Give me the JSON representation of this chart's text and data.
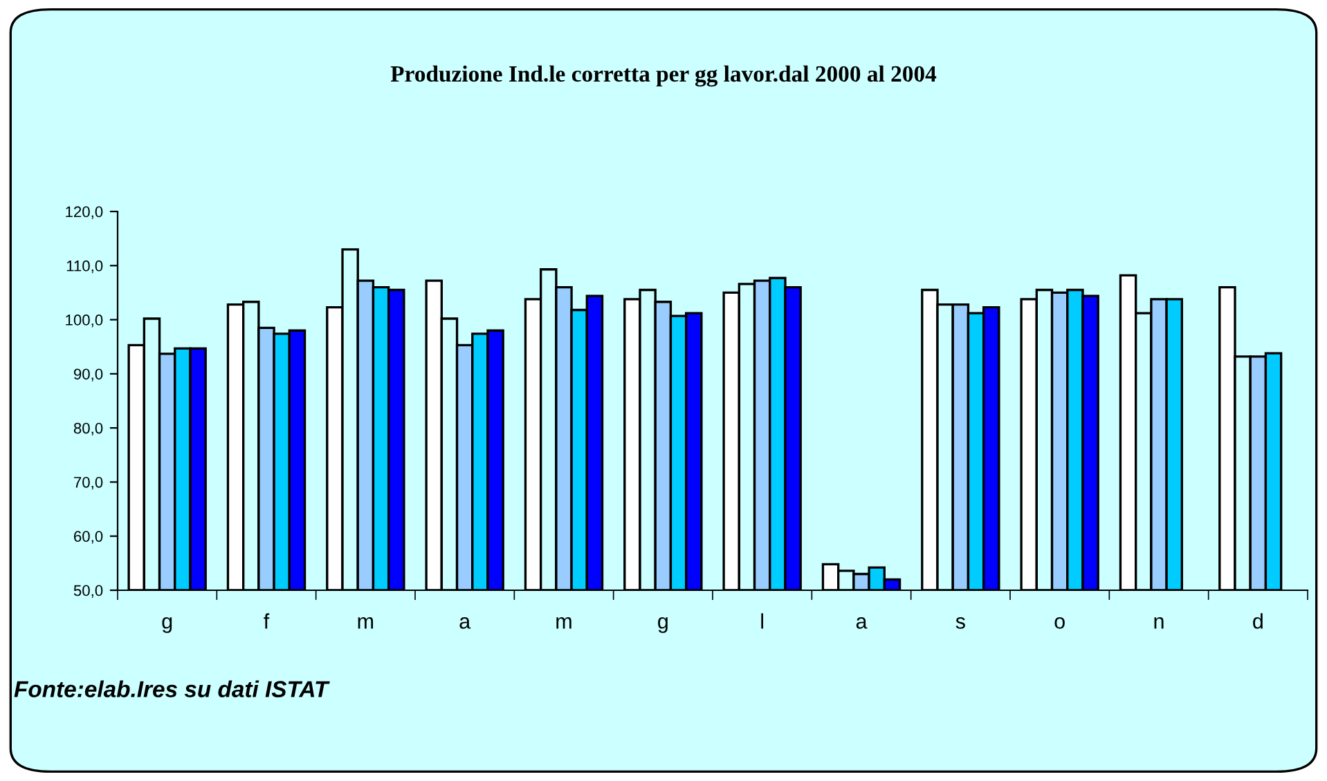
{
  "chart_data": {
    "type": "bar",
    "title": "Produzione Ind.le corretta per gg lavor.dal 2000 al 2004",
    "categories": [
      "g",
      "f",
      "m",
      "a",
      "m",
      "g",
      "l",
      "a",
      "s",
      "o",
      "n",
      "d"
    ],
    "series": [
      {
        "color": "#ffffff",
        "values": [
          95.3,
          102.8,
          102.3,
          107.2,
          103.8,
          103.8,
          105.0,
          54.8,
          105.5,
          103.8,
          108.2,
          106.0
        ]
      },
      {
        "color": "#ccffff",
        "values": [
          100.2,
          103.3,
          113.0,
          100.2,
          109.3,
          105.5,
          106.6,
          53.6,
          102.8,
          105.5,
          101.2,
          93.2
        ]
      },
      {
        "color": "#99ccff",
        "values": [
          93.7,
          98.5,
          107.2,
          95.3,
          106.0,
          103.3,
          107.2,
          53.0,
          102.8,
          105.0,
          103.8,
          93.2
        ]
      },
      {
        "color": "#00ccff",
        "values": [
          94.7,
          97.4,
          106.0,
          97.4,
          101.8,
          100.7,
          107.7,
          54.2,
          101.2,
          105.5,
          103.8,
          93.8
        ]
      },
      {
        "color": "#0000ff",
        "values": [
          94.7,
          98.0,
          105.5,
          98.0,
          104.4,
          101.2,
          106.0,
          52.0,
          102.3,
          104.4,
          null,
          null
        ]
      }
    ],
    "ylim": [
      50,
      120
    ],
    "yticks": [
      {
        "value": 50,
        "label": "50,0"
      },
      {
        "value": 60,
        "label": "60,0"
      },
      {
        "value": 70,
        "label": "70,0"
      },
      {
        "value": 80,
        "label": "80,0"
      },
      {
        "value": 90,
        "label": "90,0"
      },
      {
        "value": 100,
        "label": "100,0"
      },
      {
        "value": 110,
        "label": "110,0"
      },
      {
        "value": 120,
        "label": "120,0"
      }
    ],
    "grid": false,
    "legend": false,
    "annotations": [
      "Fonte:elab.Ires su dati ISTAT"
    ]
  }
}
